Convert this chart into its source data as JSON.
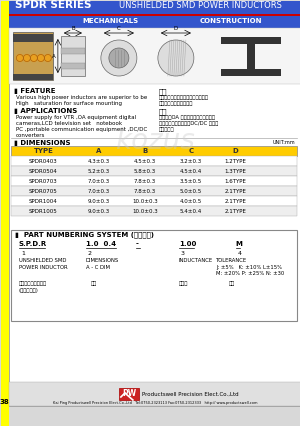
{
  "title_left": "SPDR SERIES",
  "title_right": "UNSHIELDED SMD POWER INDUCTORS",
  "sub_left": "MECHANICALS",
  "sub_right": "CONSTRUCTION",
  "header_bg": "#3355cc",
  "header_text": "#ffffff",
  "red_line": "#cc0000",
  "yellow_left": "#ffff00",
  "page_bg": "#d8d8d8",
  "content_bg": "#ffffff",
  "table_header_bg": "#ffcc00",
  "table_header_text": "#333333",
  "table_row_odd": "#ffffff",
  "table_row_even": "#eeeeee",
  "feature_title": "FEATURE",
  "feature_text1": "Various high power inductors are superior to be",
  "feature_text2": "High   saturation for surface mounting",
  "applications_title": "APPLICATIONS",
  "app_text1": "Power supply for VTR ,OA equipment digital",
  "app_text2": "cameras,LCD television set   notebook",
  "app_text3": "PC ,portable communication equipment ,DC/DC",
  "app_text4": "converters",
  "chinese_feature": "特性",
  "chinese_feat1": "具有高功率、大功率存储能力、低线",
  "chinese_feat2": "圈、小型表面安装之特型",
  "chinese_app": "用途",
  "chinese_app1": "录影机、OA 设备、数码相机、笔记本",
  "chinese_app2": "电脑、小型通信设备、DC/DC 变器器",
  "chinese_app3": "之电源应器",
  "dimensions_title": "DIMENSIONS",
  "unit_text": "UNIT:mm",
  "table_cols": [
    "TYPE",
    "A",
    "B",
    "C",
    "D"
  ],
  "table_data": [
    [
      "SPDR0403",
      "4.3±0.3",
      "4.5±0.3",
      "3.2±0.3",
      "1.2TYPE"
    ],
    [
      "SPDR0504",
      "5.2±0.3",
      "5.8±0.3",
      "4.5±0.4",
      "1.3TYPE"
    ],
    [
      "SPDR0703",
      "7.0±0.3",
      "7.8±0.3",
      "3.5±0.5",
      "1.6TYPE"
    ],
    [
      "SPDR0705",
      "7.0±0.3",
      "7.8±0.3",
      "5.0±0.5",
      "2.1TYPE"
    ],
    [
      "SPDR1004",
      "9.0±0.3",
      "10.0±0.3",
      "4.0±0.5",
      "2.1TYPE"
    ],
    [
      "SPDR1005",
      "9.0±0.3",
      "10.0±0.3",
      "5.4±0.4",
      "2.1TYPE"
    ]
  ],
  "part_title": "PART NUMBERING SYSTEM",
  "part_title_chinese": "(品名规定)",
  "part_row1": [
    "S.P.D.R",
    "1.0  0.4",
    "-",
    "1.00",
    "M"
  ],
  "part_num": [
    "1",
    "2",
    "",
    "3",
    "4"
  ],
  "desc_row3": [
    "UNSHIELDED SMD",
    "DIMENSIONS",
    "INDUCTANCE",
    "TOLERANCE"
  ],
  "desc_row4": [
    "POWER INDUCTOR",
    "A - C DIM",
    "",
    "J: ±5%   K: ±10% L±15%"
  ],
  "desc_row5": [
    "",
    "",
    "",
    "M: ±20% P: ±25% N: ±30"
  ],
  "chinese_part1": "开绕组合式功率电感",
  "chinese_part2": "(淀渎层型式)",
  "chinese_part3": "尺寸",
  "chinese_part4": "电感量",
  "chinese_part5": "公差",
  "footer_company": "Productswell Precision Elect.Co.,Ltd",
  "footer_contact": "Kai Ping Productswell Precision Elect.Co.,Ltd   Tel:0750-2323113 Fax:0750-2312333   http:// www.productswell.com",
  "page_num": "38"
}
